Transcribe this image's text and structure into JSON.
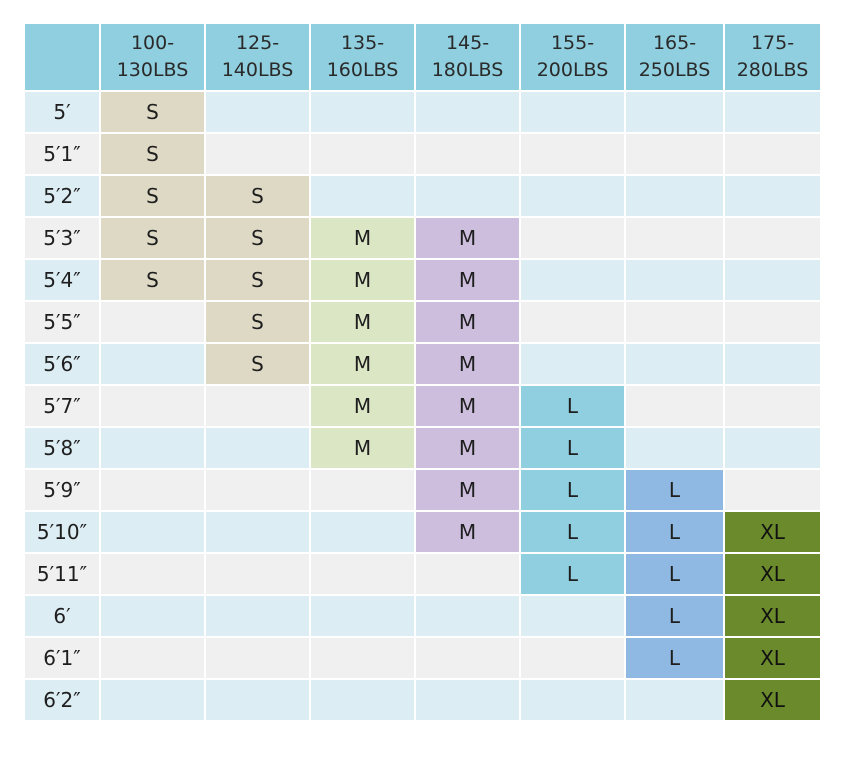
{
  "corner": "",
  "weight_columns": [
    {
      "line1": "100-",
      "line2": "130LBS"
    },
    {
      "line1": "125-",
      "line2": "140LBS"
    },
    {
      "line1": "135-",
      "line2": "160LBS"
    },
    {
      "line1": "145-",
      "line2": "180LBS"
    },
    {
      "line1": "155-",
      "line2": "200LBS"
    },
    {
      "line1": "165-",
      "line2": "250LBS"
    },
    {
      "line1": "175-",
      "line2": "280LBS"
    }
  ],
  "rows": [
    {
      "height": "5′",
      "sizes": [
        "S",
        "",
        "",
        "",
        "",
        "",
        ""
      ]
    },
    {
      "height": "5′1″",
      "sizes": [
        "S",
        "",
        "",
        "",
        "",
        "",
        ""
      ]
    },
    {
      "height": "5′2″",
      "sizes": [
        "S",
        "S",
        "",
        "",
        "",
        "",
        ""
      ]
    },
    {
      "height": "5′3″",
      "sizes": [
        "S",
        "S",
        "M",
        "M",
        "",
        "",
        ""
      ]
    },
    {
      "height": "5′4″",
      "sizes": [
        "S",
        "S",
        "M",
        "M",
        "",
        "",
        ""
      ]
    },
    {
      "height": "5′5″",
      "sizes": [
        "",
        "S",
        "M",
        "M",
        "",
        "",
        ""
      ]
    },
    {
      "height": "5′6″",
      "sizes": [
        "",
        "S",
        "M",
        "M",
        "",
        "",
        ""
      ]
    },
    {
      "height": "5′7″",
      "sizes": [
        "",
        "",
        "M",
        "M",
        "L",
        "",
        ""
      ]
    },
    {
      "height": "5′8″",
      "sizes": [
        "",
        "",
        "M",
        "M",
        "L",
        "",
        ""
      ]
    },
    {
      "height": "5′9″",
      "sizes": [
        "",
        "",
        "",
        "M",
        "L",
        "L",
        ""
      ]
    },
    {
      "height": "5′10″",
      "sizes": [
        "",
        "",
        "",
        "M",
        "L",
        "L",
        "XL"
      ]
    },
    {
      "height": "5′11″",
      "sizes": [
        "",
        "",
        "",
        "",
        "L",
        "L",
        "XL"
      ]
    },
    {
      "height": "6′",
      "sizes": [
        "",
        "",
        "",
        "",
        "",
        "L",
        "XL"
      ]
    },
    {
      "height": "6′1″",
      "sizes": [
        "",
        "",
        "",
        "",
        "",
        "L",
        "XL"
      ]
    },
    {
      "height": "6′2″",
      "sizes": [
        "",
        "",
        "",
        "",
        "",
        "",
        "XL"
      ]
    }
  ],
  "colors": {
    "header": "#8fcfdf",
    "row_odd": "#dcedf3",
    "row_even": "#f0f0f0",
    "S": "#ddd9c5",
    "M_col3": "#dbe6c4",
    "M_col4": "#cdbedd",
    "L_col5": "#8fcfdf",
    "L_col6": "#8fb8e3",
    "XL": "#6a8a2c"
  }
}
